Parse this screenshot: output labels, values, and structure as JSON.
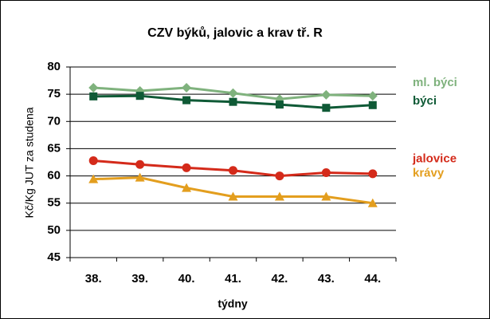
{
  "chart_data": {
    "type": "line",
    "title": "CZV býků, jalovic a krav tř. R",
    "xlabel": "týdny",
    "ylabel": "Kč/Kg JUT za studena",
    "categories": [
      "38.",
      "39.",
      "40.",
      "41.",
      "42.",
      "43.",
      "44."
    ],
    "series": [
      {
        "name": "ml. býci",
        "color": "#7fb27d",
        "marker": "diamond",
        "values": [
          76.2,
          75.6,
          76.2,
          75.2,
          74.1,
          74.9,
          74.7
        ]
      },
      {
        "name": "býci",
        "color": "#0f5a36",
        "marker": "square",
        "values": [
          74.6,
          74.7,
          73.9,
          73.6,
          73.1,
          72.5,
          73.0
        ]
      },
      {
        "name": "jalovice",
        "color": "#d42a1a",
        "marker": "circle",
        "values": [
          62.8,
          62.1,
          61.5,
          61.0,
          60.0,
          60.6,
          60.4
        ]
      },
      {
        "name": "krávy",
        "color": "#e39e1e",
        "marker": "triangle",
        "values": [
          59.4,
          59.7,
          57.8,
          56.2,
          56.2,
          56.2,
          55.0
        ]
      }
    ],
    "ylim": [
      45,
      80
    ],
    "yticks": [
      45,
      50,
      55,
      60,
      65,
      70,
      75,
      80
    ],
    "grid": true,
    "legend": "right"
  }
}
